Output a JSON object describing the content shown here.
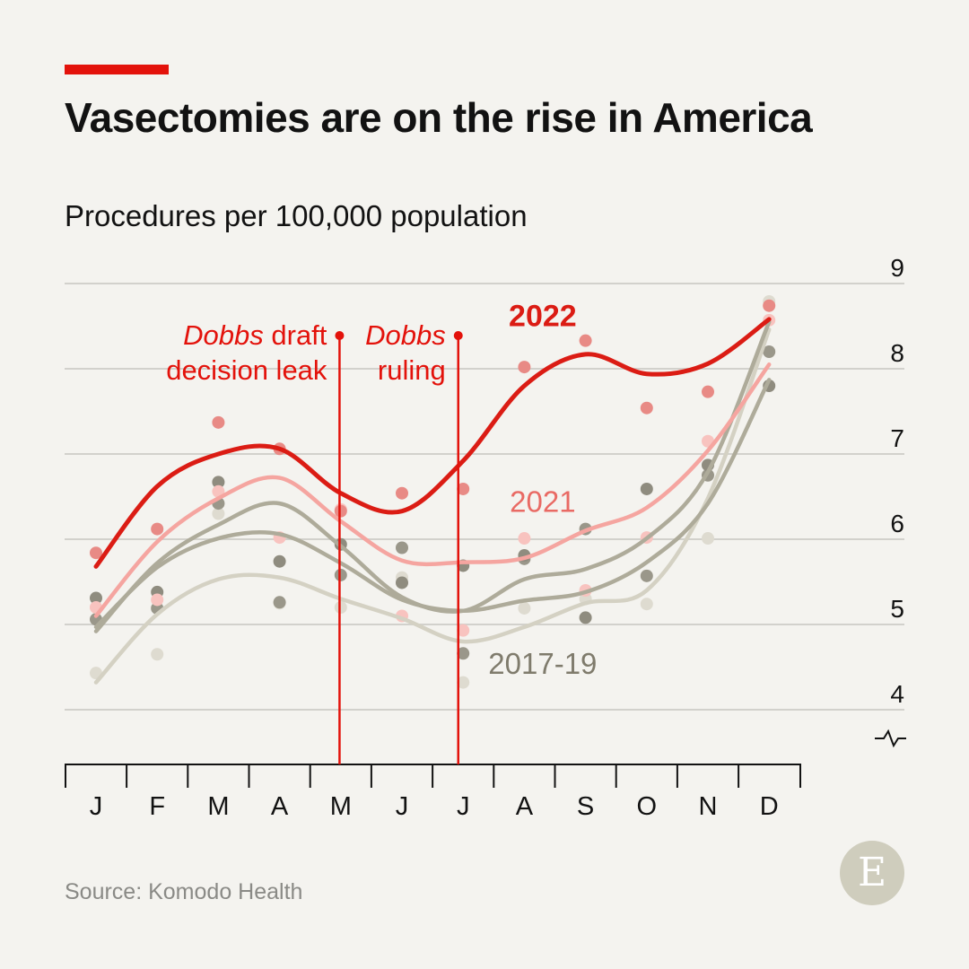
{
  "header": {
    "title": "Vasectomies are on the rise in America",
    "subtitle": "Procedures per 100,000 population"
  },
  "footer": {
    "source": "Source: Komodo Health",
    "logo_letter": "E"
  },
  "colors": {
    "accent": "#e3120b",
    "series_2022": "#db1c14",
    "series_2021": "#f5a5a0",
    "series_2017_19": "#aeab9a",
    "background": "#f4f3ef",
    "grid": "#d2d1cc"
  },
  "chart_data": {
    "type": "line",
    "title": "Vasectomies are on the rise in America",
    "subtitle": "Procedures per 100,000 population",
    "categories": [
      "J",
      "F",
      "M",
      "A",
      "M",
      "J",
      "J",
      "A",
      "S",
      "O",
      "N",
      "D"
    ],
    "yticks": [
      4,
      5,
      6,
      7,
      8,
      9
    ],
    "ylim": [
      3.55,
      9.1
    ],
    "y_axis_break": true,
    "grid": true,
    "y_axis_position": "right",
    "series": [
      {
        "name": "2022",
        "style": "highlight",
        "color": "#db1c14",
        "label_anchor": [
          7.3,
          8.5
        ],
        "points": [
          5.84,
          6.12,
          7.37,
          7.06,
          6.33,
          6.54,
          6.59,
          8.02,
          8.33,
          7.54,
          7.73,
          8.74
        ],
        "trend": [
          5.68,
          6.62,
          7.0,
          7.06,
          6.54,
          6.33,
          6.92,
          7.8,
          8.17,
          7.94,
          8.06,
          8.58
        ]
      },
      {
        "name": "2021",
        "style": "highlight",
        "color": "#f5a5a0",
        "label_anchor": [
          7.3,
          6.32
        ],
        "points": [
          5.2,
          5.29,
          6.56,
          6.02,
          6.35,
          5.1,
          4.93,
          6.01,
          5.4,
          6.02,
          7.15,
          8.57
        ],
        "trend": [
          5.1,
          5.97,
          6.48,
          6.72,
          6.21,
          5.75,
          5.73,
          5.78,
          6.1,
          6.37,
          7.04,
          8.05
        ]
      },
      {
        "color": "#aeab9a",
        "points": [
          5.31,
          5.38,
          6.67,
          5.74,
          5.94,
          5.49,
          5.69,
          5.81,
          5.08,
          6.59,
          6.87,
          7.8
        ],
        "trend": [
          4.92,
          5.72,
          6.17,
          6.42,
          5.92,
          5.32,
          5.16,
          5.53,
          5.65,
          6.01,
          6.79,
          8.55
        ]
      },
      {
        "color": "#aeab9a",
        "points": [
          5.06,
          5.19,
          6.42,
          5.26,
          5.58,
          5.9,
          4.66,
          5.77,
          6.12,
          5.57,
          6.75,
          8.2
        ],
        "trend": [
          4.97,
          5.67,
          6.01,
          6.06,
          5.72,
          5.29,
          5.16,
          5.28,
          5.38,
          5.73,
          6.42,
          7.87
        ]
      },
      {
        "name": "2017-19",
        "style": "muted",
        "color": "#d4d1c3",
        "label_anchor": [
          7.3,
          4.42
        ],
        "points": [
          4.43,
          4.65,
          6.3,
          5.25,
          5.2,
          5.55,
          4.32,
          5.19,
          5.3,
          5.24,
          6.01,
          8.79
        ],
        "trend": [
          4.32,
          5.12,
          5.53,
          5.55,
          5.3,
          5.07,
          4.8,
          4.97,
          5.25,
          5.4,
          6.48,
          8.46
        ]
      }
    ],
    "annotations": [
      {
        "label_italic": "Dobbs",
        "label_rest": " draft",
        "line2": "decision leak",
        "x": 3.98,
        "align": "end"
      },
      {
        "label_italic": "Dobbs",
        "label_rest": "",
        "line2": "ruling",
        "x": 5.92,
        "align": "end"
      }
    ]
  }
}
